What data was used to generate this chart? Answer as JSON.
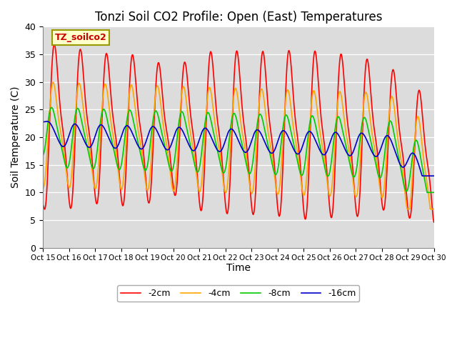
{
  "title": "Tonzi Soil CO2 Profile: Open (East) Temperatures",
  "xlabel": "Time",
  "ylabel": "Soil Temperature (C)",
  "annotation": "TZ_soilco2",
  "ylim": [
    0,
    40
  ],
  "yticks": [
    0,
    5,
    10,
    15,
    20,
    25,
    30,
    35,
    40
  ],
  "xtick_labels": [
    "Oct 15",
    "Oct 16",
    "Oct 17",
    "Oct 18",
    "Oct 19",
    "Oct 20",
    "Oct 21",
    "Oct 22",
    "Oct 23",
    "Oct 24",
    "Oct 25",
    "Oct 26",
    "Oct 27",
    "Oct 28",
    "Oct 29",
    "Oct 30"
  ],
  "colors": {
    "-2cm": "#ff0000",
    "-4cm": "#ffa500",
    "-8cm": "#00cc00",
    "-16cm": "#0000cc"
  },
  "legend_labels": [
    "-2cm",
    "-4cm",
    "-8cm",
    "-16cm"
  ],
  "bg_color": "#dcdcdc",
  "title_fontsize": 12,
  "axis_label_fontsize": 10
}
